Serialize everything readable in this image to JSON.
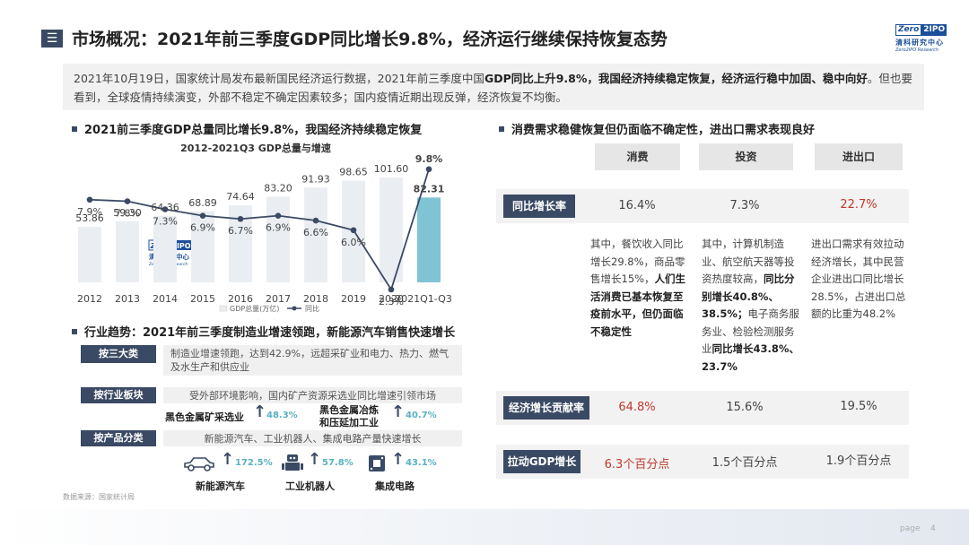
{
  "header": {
    "icon": "☰",
    "title": "市场概况：2021年前三季度GDP同比增长9.8%，经济运行继续保持恢复态势",
    "logo_word": "Zero",
    "logo_num": "2IPO",
    "logo_cn": "清科研究中心",
    "logo_en": "Zero2IPO Research"
  },
  "intro": {
    "part1": "2021年10月19日，国家统计局发布最新国民经济运行数据，2021年前三季度中国",
    "bold1": "GDP同比上升9.8%，我国经济持续稳定恢复，经济运行稳中加固、稳中向好",
    "part2": "。但也要看到，全球疫情持续演变，外部不稳定不确定因素较多；国内疫情近期出现反弹，经济恢复不均衡。"
  },
  "left_section_title": "2021前三季度GDP总量同比增长9.8%，我国经济持续稳定恢复",
  "chart_data": {
    "type": "bar",
    "title": "2012-2021Q3 GDP总量与增速",
    "categories": [
      "2012",
      "2013",
      "2014",
      "2015",
      "2016",
      "2017",
      "2018",
      "2019",
      "2020",
      "2021Q1-Q3"
    ],
    "series": [
      {
        "name": "GDP总量(万亿)",
        "type": "bar",
        "values": [
          53.86,
          59.3,
          64.36,
          68.89,
          74.64,
          83.2,
          91.93,
          98.65,
          101.6,
          82.31
        ]
      },
      {
        "name": "同比",
        "type": "line",
        "values": [
          7.9,
          7.8,
          7.3,
          6.9,
          6.7,
          6.9,
          6.6,
          6.0,
          2.3,
          9.8
        ],
        "labels": [
          "7.9%",
          "7.8%",
          "7.3%",
          "6.9%",
          "6.7%",
          "6.9%",
          "6.6%",
          "6.0%",
          "2.3%",
          "9.8%"
        ]
      }
    ],
    "watermark": {
      "word": "Zero",
      "num": "2IPO",
      "cn": "清科研究中心",
      "en": "Zero2IPO Research"
    },
    "legend": "bottom"
  },
  "trend": {
    "title": "行业趋势：2021年前三季度制造业增速领跑，新能源汽车销售快速增长",
    "rows": [
      {
        "label": "按三大类",
        "text": "制造业增速领跑，达到42.9%，远超采矿业和电力、热力、燃气及水生产和供应业"
      },
      {
        "label": "按行业板块",
        "text": "受外部环境影响，国内矿产资源采选业同比增速引领市场"
      },
      {
        "label": "按产品分类",
        "text": "新能源汽车、工业机器人、集成电路产量快速增长"
      }
    ],
    "industries": [
      {
        "name": "黑色金属矿采选业",
        "pct": "48.3%"
      },
      {
        "name1": "黑色金属冶炼",
        "name2": "和压延加工业",
        "pct": "40.7%"
      }
    ],
    "products": [
      {
        "name": "新能源汽车",
        "pct": "172.5%",
        "icon": "car-icon"
      },
      {
        "name": "工业机器人",
        "pct": "57.8%",
        "icon": "robot-icon"
      },
      {
        "name": "集成电路",
        "pct": "43.1%",
        "icon": "chip-icon"
      }
    ]
  },
  "source": "数据来源：国家统计局",
  "right": {
    "title": "消费需求稳健恢复但仍面临不确定性，进出口需求表现良好",
    "columns": [
      "消费",
      "投资",
      "进出口"
    ],
    "rows": [
      {
        "label": "同比增长率",
        "values": [
          "16.4%",
          "7.3%",
          "22.7%"
        ]
      },
      {
        "label": "经济增长贡献率",
        "values": [
          "64.8%",
          "15.6%",
          "19.5%"
        ]
      },
      {
        "label": "拉动GDP增长",
        "values": [
          "6.3个百分点",
          "1.5个百分点",
          "1.9个百分点"
        ]
      }
    ],
    "desc": {
      "consumption_plain": "其中，餐饮收入同比增长29.8%，商品零售增长15%，",
      "consumption_bold": "人们生活消费已基本恢复至疫前水平，但仍面临不稳定性",
      "invest_plain1": "其中，计算机制造业、航空航天器等投资热度较高，",
      "invest_bold1": "同比分别增长40.8%、38.5%；",
      "invest_plain2": "电子商务服务业、检验检测服务业",
      "invest_bold2": "同比增长43.8%、23.7%",
      "trade": "进出口需求有效拉动经济增长，其中民营企业进出口同比增长28.5%，占进出口总额的比重为48.2%"
    }
  },
  "page": {
    "label": "page",
    "number": "4"
  }
}
